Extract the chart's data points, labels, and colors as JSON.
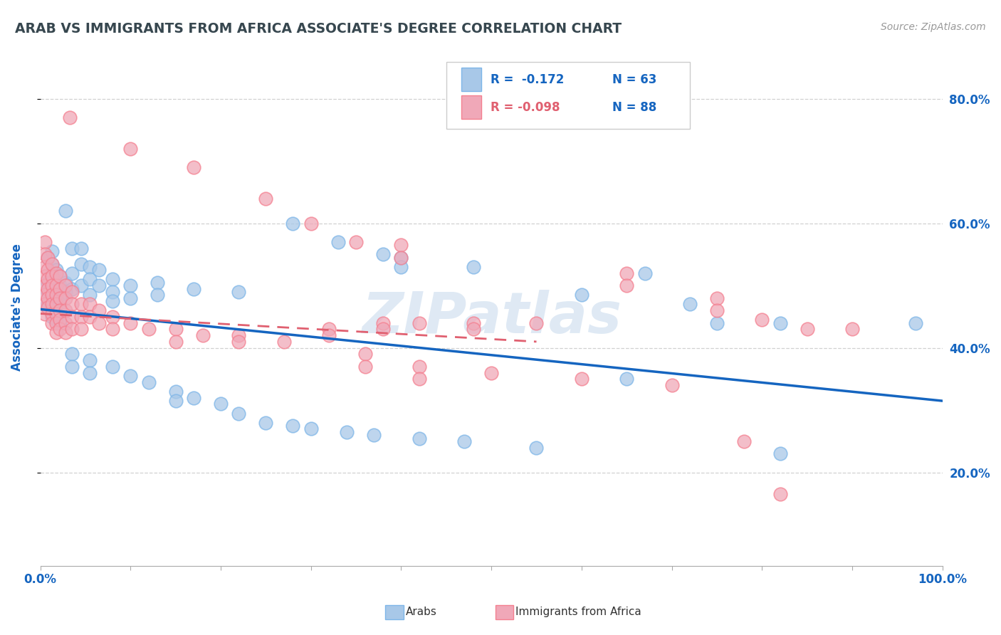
{
  "title": "ARAB VS IMMIGRANTS FROM AFRICA ASSOCIATE'S DEGREE CORRELATION CHART",
  "source": "Source: ZipAtlas.com",
  "ylabel": "Associate's Degree",
  "xlim": [
    0.0,
    1.0
  ],
  "ylim": [
    0.05,
    0.88
  ],
  "xtick_positions": [
    0.0,
    0.1,
    0.2,
    0.3,
    0.4,
    0.5,
    0.6,
    0.7,
    0.8,
    0.9,
    1.0
  ],
  "xtick_labels": [
    "0.0%",
    "",
    "",
    "",
    "",
    "",
    "",
    "",
    "",
    "",
    "100.0%"
  ],
  "ytick_values": [
    0.2,
    0.4,
    0.6,
    0.8
  ],
  "ytick_labels": [
    "20.0%",
    "40.0%",
    "60.0%",
    "80.0%"
  ],
  "blue_color": "#A8C8E8",
  "pink_color": "#F0A8B8",
  "blue_edge": "#7EB6E8",
  "pink_edge": "#F48090",
  "line_blue": "#1565C0",
  "line_pink": "#E06070",
  "axis_label_color": "#1565C0",
  "title_color": "#37474F",
  "source_color": "#999999",
  "watermark": "ZIPatlas",
  "blue_line_x": [
    0.0,
    1.0
  ],
  "blue_line_y": [
    0.462,
    0.315
  ],
  "pink_line_x": [
    0.0,
    0.55
  ],
  "pink_line_y": [
    0.455,
    0.41
  ],
  "blue_points": [
    [
      0.008,
      0.545
    ],
    [
      0.008,
      0.505
    ],
    [
      0.008,
      0.49
    ],
    [
      0.008,
      0.47
    ],
    [
      0.013,
      0.555
    ],
    [
      0.013,
      0.535
    ],
    [
      0.013,
      0.52
    ],
    [
      0.013,
      0.505
    ],
    [
      0.013,
      0.49
    ],
    [
      0.013,
      0.475
    ],
    [
      0.013,
      0.46
    ],
    [
      0.013,
      0.45
    ],
    [
      0.018,
      0.525
    ],
    [
      0.018,
      0.505
    ],
    [
      0.018,
      0.49
    ],
    [
      0.018,
      0.475
    ],
    [
      0.018,
      0.46
    ],
    [
      0.018,
      0.445
    ],
    [
      0.022,
      0.515
    ],
    [
      0.022,
      0.5
    ],
    [
      0.022,
      0.485
    ],
    [
      0.022,
      0.47
    ],
    [
      0.022,
      0.455
    ],
    [
      0.022,
      0.44
    ],
    [
      0.028,
      0.62
    ],
    [
      0.028,
      0.505
    ],
    [
      0.028,
      0.49
    ],
    [
      0.035,
      0.56
    ],
    [
      0.035,
      0.52
    ],
    [
      0.035,
      0.495
    ],
    [
      0.045,
      0.56
    ],
    [
      0.045,
      0.535
    ],
    [
      0.045,
      0.5
    ],
    [
      0.055,
      0.53
    ],
    [
      0.055,
      0.51
    ],
    [
      0.055,
      0.485
    ],
    [
      0.065,
      0.525
    ],
    [
      0.065,
      0.5
    ],
    [
      0.08,
      0.51
    ],
    [
      0.08,
      0.49
    ],
    [
      0.08,
      0.475
    ],
    [
      0.1,
      0.5
    ],
    [
      0.1,
      0.48
    ],
    [
      0.13,
      0.505
    ],
    [
      0.13,
      0.485
    ],
    [
      0.17,
      0.495
    ],
    [
      0.22,
      0.49
    ],
    [
      0.28,
      0.6
    ],
    [
      0.33,
      0.57
    ],
    [
      0.38,
      0.55
    ],
    [
      0.4,
      0.545
    ],
    [
      0.4,
      0.53
    ],
    [
      0.48,
      0.53
    ],
    [
      0.6,
      0.485
    ],
    [
      0.67,
      0.52
    ],
    [
      0.72,
      0.47
    ],
    [
      0.75,
      0.44
    ],
    [
      0.82,
      0.44
    ],
    [
      0.97,
      0.44
    ],
    [
      0.035,
      0.39
    ],
    [
      0.035,
      0.37
    ],
    [
      0.055,
      0.38
    ],
    [
      0.055,
      0.36
    ],
    [
      0.08,
      0.37
    ],
    [
      0.1,
      0.355
    ],
    [
      0.12,
      0.345
    ],
    [
      0.15,
      0.33
    ],
    [
      0.15,
      0.315
    ],
    [
      0.17,
      0.32
    ],
    [
      0.2,
      0.31
    ],
    [
      0.22,
      0.295
    ],
    [
      0.25,
      0.28
    ],
    [
      0.28,
      0.275
    ],
    [
      0.3,
      0.27
    ],
    [
      0.34,
      0.265
    ],
    [
      0.37,
      0.26
    ],
    [
      0.42,
      0.255
    ],
    [
      0.47,
      0.25
    ],
    [
      0.55,
      0.24
    ],
    [
      0.65,
      0.35
    ],
    [
      0.82,
      0.23
    ]
  ],
  "pink_points": [
    [
      0.005,
      0.57
    ],
    [
      0.005,
      0.55
    ],
    [
      0.005,
      0.53
    ],
    [
      0.005,
      0.515
    ],
    [
      0.005,
      0.5
    ],
    [
      0.005,
      0.485
    ],
    [
      0.005,
      0.47
    ],
    [
      0.005,
      0.455
    ],
    [
      0.008,
      0.545
    ],
    [
      0.008,
      0.525
    ],
    [
      0.008,
      0.51
    ],
    [
      0.008,
      0.495
    ],
    [
      0.008,
      0.48
    ],
    [
      0.008,
      0.465
    ],
    [
      0.013,
      0.535
    ],
    [
      0.013,
      0.515
    ],
    [
      0.013,
      0.5
    ],
    [
      0.013,
      0.485
    ],
    [
      0.013,
      0.47
    ],
    [
      0.013,
      0.455
    ],
    [
      0.013,
      0.44
    ],
    [
      0.018,
      0.52
    ],
    [
      0.018,
      0.5
    ],
    [
      0.018,
      0.485
    ],
    [
      0.018,
      0.47
    ],
    [
      0.018,
      0.455
    ],
    [
      0.018,
      0.44
    ],
    [
      0.018,
      0.425
    ],
    [
      0.022,
      0.515
    ],
    [
      0.022,
      0.495
    ],
    [
      0.022,
      0.48
    ],
    [
      0.022,
      0.46
    ],
    [
      0.022,
      0.445
    ],
    [
      0.022,
      0.43
    ],
    [
      0.028,
      0.5
    ],
    [
      0.028,
      0.48
    ],
    [
      0.028,
      0.46
    ],
    [
      0.028,
      0.44
    ],
    [
      0.028,
      0.425
    ],
    [
      0.035,
      0.49
    ],
    [
      0.035,
      0.47
    ],
    [
      0.035,
      0.45
    ],
    [
      0.035,
      0.43
    ],
    [
      0.045,
      0.47
    ],
    [
      0.045,
      0.45
    ],
    [
      0.045,
      0.43
    ],
    [
      0.055,
      0.47
    ],
    [
      0.055,
      0.45
    ],
    [
      0.065,
      0.46
    ],
    [
      0.065,
      0.44
    ],
    [
      0.08,
      0.45
    ],
    [
      0.08,
      0.43
    ],
    [
      0.1,
      0.44
    ],
    [
      0.12,
      0.43
    ],
    [
      0.15,
      0.43
    ],
    [
      0.15,
      0.41
    ],
    [
      0.18,
      0.42
    ],
    [
      0.22,
      0.42
    ],
    [
      0.22,
      0.41
    ],
    [
      0.27,
      0.41
    ],
    [
      0.32,
      0.43
    ],
    [
      0.32,
      0.42
    ],
    [
      0.38,
      0.44
    ],
    [
      0.38,
      0.43
    ],
    [
      0.42,
      0.44
    ],
    [
      0.48,
      0.44
    ],
    [
      0.48,
      0.43
    ],
    [
      0.55,
      0.44
    ],
    [
      0.033,
      0.77
    ],
    [
      0.1,
      0.72
    ],
    [
      0.17,
      0.69
    ],
    [
      0.25,
      0.64
    ],
    [
      0.3,
      0.6
    ],
    [
      0.35,
      0.57
    ],
    [
      0.4,
      0.565
    ],
    [
      0.4,
      0.545
    ],
    [
      0.65,
      0.52
    ],
    [
      0.65,
      0.5
    ],
    [
      0.75,
      0.48
    ],
    [
      0.75,
      0.46
    ],
    [
      0.8,
      0.445
    ],
    [
      0.85,
      0.43
    ],
    [
      0.9,
      0.43
    ],
    [
      0.36,
      0.39
    ],
    [
      0.36,
      0.37
    ],
    [
      0.42,
      0.37
    ],
    [
      0.42,
      0.35
    ],
    [
      0.5,
      0.36
    ],
    [
      0.6,
      0.35
    ],
    [
      0.7,
      0.34
    ],
    [
      0.78,
      0.25
    ],
    [
      0.82,
      0.165
    ]
  ]
}
